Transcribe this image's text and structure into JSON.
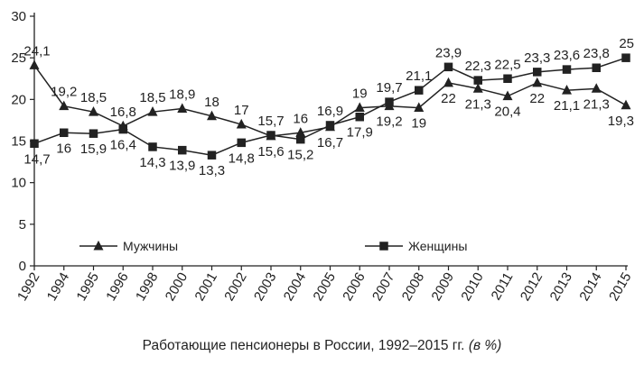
{
  "chart_data": {
    "type": "line",
    "caption": "Работающие пенсионеры в России, 1992–2015 гг.",
    "caption_unit": "(в %)",
    "x": [
      "1992",
      "1994",
      "1995",
      "1996",
      "1998",
      "2000",
      "2001",
      "2002",
      "2003",
      "2004",
      "2005",
      "2006",
      "2007",
      "2008",
      "2009",
      "2010",
      "2011",
      "2012",
      "2013",
      "2014",
      "2015"
    ],
    "ylim": [
      0,
      30
    ],
    "yticks": [
      0,
      5,
      10,
      15,
      20,
      25,
      30
    ],
    "grid": false,
    "legend_position": "lower-middle",
    "series": [
      {
        "name": "Мужчины",
        "marker": "triangle",
        "values": [
          24.1,
          19.2,
          18.5,
          16.8,
          18.5,
          18.9,
          18,
          17,
          15.6,
          16,
          16.7,
          19,
          19.2,
          19,
          22,
          21.3,
          20.4,
          22,
          21.1,
          21.3,
          19.3
        ],
        "labels": [
          "24,1",
          "19,2",
          "18,5",
          "16,8",
          "18,5",
          "18,9",
          "18",
          "17",
          "15,6",
          "16",
          "16,7",
          "19",
          "19,2",
          "19",
          "22",
          "21,3",
          "20,4",
          "22",
          "21,1",
          "21,3",
          "19,3"
        ]
      },
      {
        "name": "Женщины",
        "marker": "square",
        "values": [
          14.7,
          16,
          15.9,
          16.4,
          14.3,
          13.9,
          13.3,
          14.8,
          15.7,
          15.2,
          16.9,
          17.9,
          19.7,
          21.1,
          23.9,
          22.3,
          22.5,
          23.3,
          23.6,
          23.8,
          25
        ],
        "labels": [
          "14,7",
          "16",
          "15,9",
          "16,4",
          "14,3",
          "13,9",
          "13,3",
          "14,8",
          "15,7",
          "15,2",
          "16,9",
          "17,9",
          "19,7",
          "21,1",
          "23,9",
          "22,3",
          "22,5",
          "23,3",
          "23,6",
          "23,8",
          "25"
        ]
      }
    ]
  }
}
